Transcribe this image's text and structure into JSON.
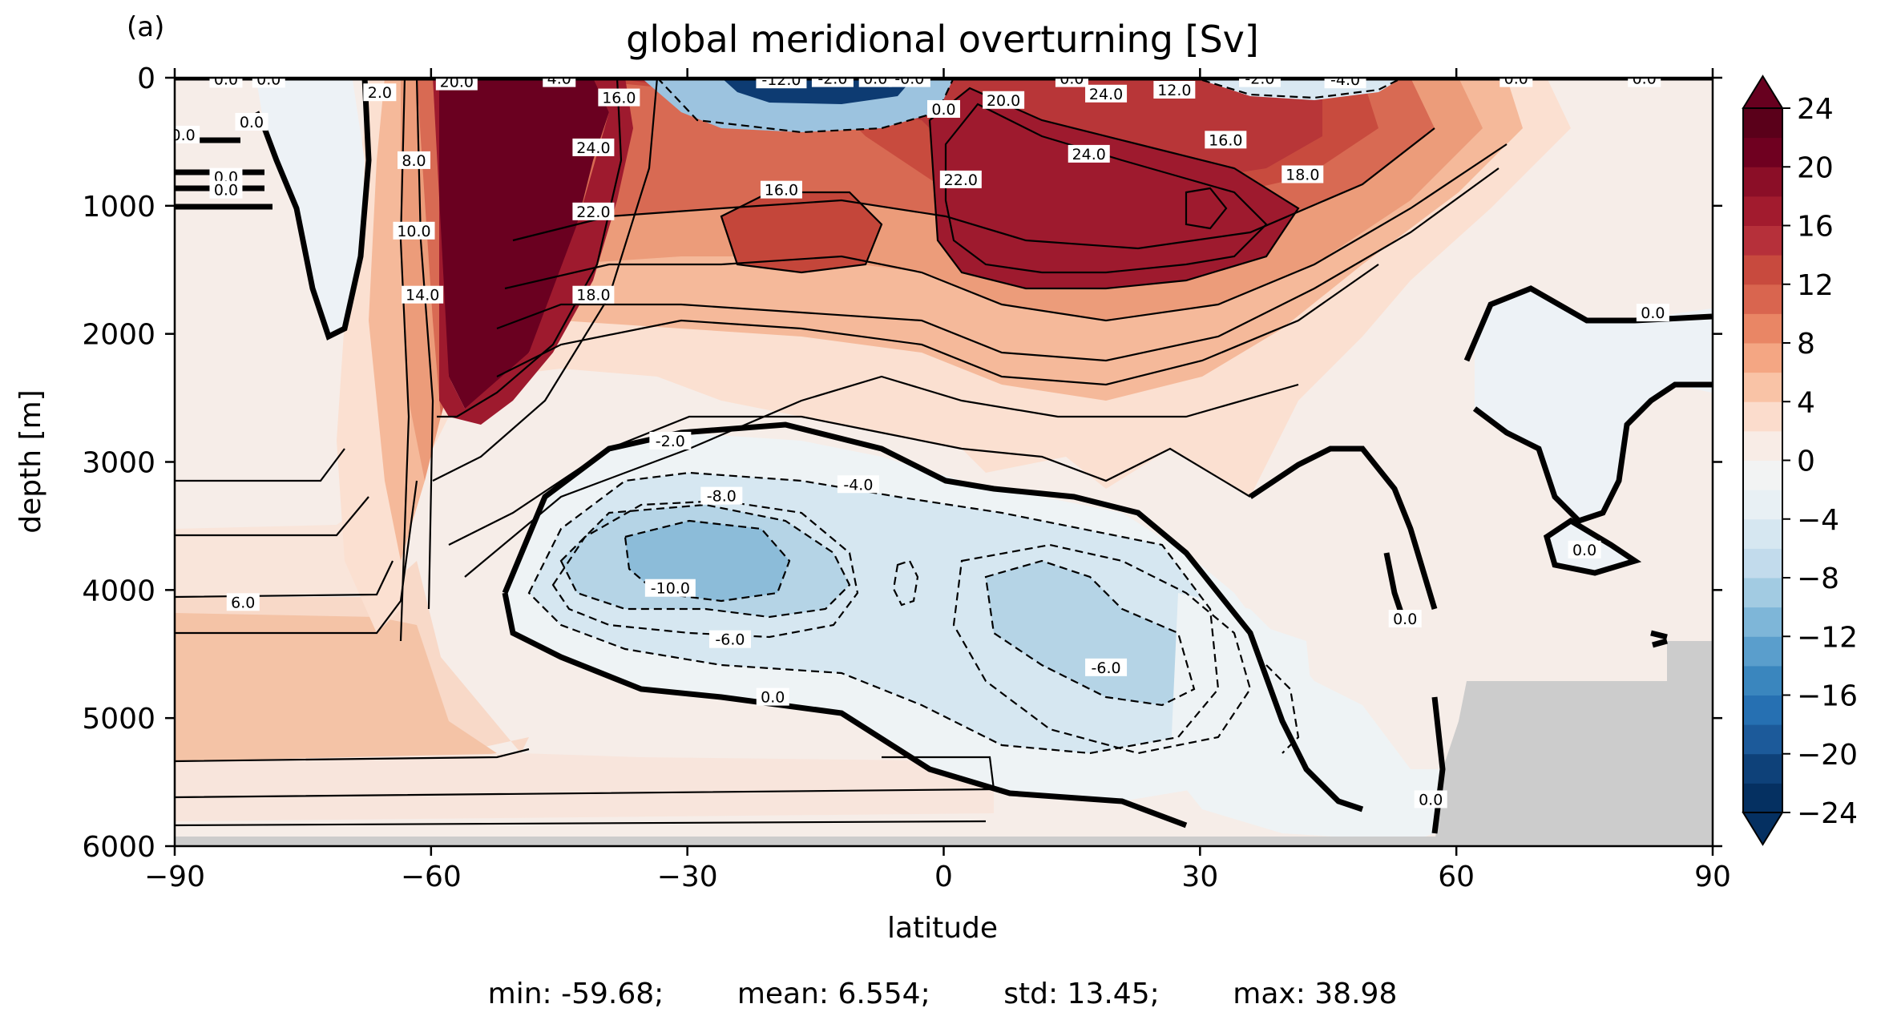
{
  "panel_label": "(a)",
  "stats_line": "min: -59.68;        mean: 6.554;        std: 13.45;        max: 38.98",
  "chart_data": {
    "type": "heatmap",
    "title": "global meridional overturning [Sv]",
    "xlabel": "latitude",
    "ylabel": "depth [m]",
    "xlim": [
      -90,
      90
    ],
    "ylim": [
      0,
      6000
    ],
    "y_inverted": true,
    "x_ticks": [
      -90,
      -60,
      -30,
      0,
      30,
      60,
      90
    ],
    "x_tick_labels": [
      "−90",
      "−60",
      "−30",
      "0",
      "30",
      "60",
      "90"
    ],
    "y_ticks": [
      0,
      1000,
      2000,
      3000,
      4000,
      5000,
      6000
    ],
    "y_tick_labels": [
      "0",
      "1000",
      "2000",
      "3000",
      "4000",
      "5000",
      "6000"
    ],
    "colorbar": {
      "colormap": "RdBu_r",
      "vmin": -24,
      "vmax": 24,
      "step": 2,
      "extend": "both",
      "tick_values": [
        24,
        20,
        16,
        12,
        8,
        4,
        0,
        -4,
        -8,
        -12,
        -16,
        -20,
        -24
      ],
      "tick_labels": [
        "24",
        "20",
        "16",
        "12",
        "8",
        "4",
        "0",
        "−4",
        "−8",
        "−12",
        "−16",
        "−20",
        "−24"
      ]
    },
    "contour_levels_solid": [
      0,
      2,
      4,
      6,
      8,
      10,
      12,
      14,
      16,
      18,
      20,
      22,
      24
    ],
    "contour_levels_dashed": [
      -2,
      -4,
      -6,
      -8,
      -10,
      -12
    ],
    "annotations": [
      {
        "text": "0.0",
        "x": -84,
        "y": 15
      },
      {
        "text": "0.0",
        "x": -79,
        "y": 15
      },
      {
        "text": "0.0",
        "x": -89,
        "y": 450
      },
      {
        "text": "0.0",
        "x": -84,
        "y": 780
      },
      {
        "text": "0.0",
        "x": -84,
        "y": 880
      },
      {
        "text": "0.0",
        "x": -81,
        "y": 350
      },
      {
        "text": "2.0",
        "x": -66,
        "y": 120
      },
      {
        "text": "8.0",
        "x": -62,
        "y": 650
      },
      {
        "text": "10.0",
        "x": -62,
        "y": 1200
      },
      {
        "text": "14.0",
        "x": -61,
        "y": 1700
      },
      {
        "text": "20.0",
        "x": -57,
        "y": 35
      },
      {
        "text": "4.0",
        "x": -45,
        "y": 10
      },
      {
        "text": "24.0",
        "x": -41,
        "y": 550
      },
      {
        "text": "22.0",
        "x": -41,
        "y": 1050
      },
      {
        "text": "18.0",
        "x": -41,
        "y": 1700
      },
      {
        "text": "16.0",
        "x": -38,
        "y": 160
      },
      {
        "text": "16.0",
        "x": -19,
        "y": 880
      },
      {
        "text": "-12.0",
        "x": -19,
        "y": 20
      },
      {
        "text": "-2.0",
        "x": -13,
        "y": 10
      },
      {
        "text": "0.0",
        "x": -8,
        "y": 10
      },
      {
        "text": "-0.0",
        "x": -4,
        "y": 10
      },
      {
        "text": "0.0",
        "x": 0,
        "y": 250
      },
      {
        "text": "20.0",
        "x": 7,
        "y": 180
      },
      {
        "text": "22.0",
        "x": 2,
        "y": 800
      },
      {
        "text": "0.0",
        "x": 15,
        "y": 10
      },
      {
        "text": "24.0",
        "x": 19,
        "y": 130
      },
      {
        "text": "24.0",
        "x": 17,
        "y": 600
      },
      {
        "text": "12.0",
        "x": 27,
        "y": 100
      },
      {
        "text": "16.0",
        "x": 33,
        "y": 490
      },
      {
        "text": "18.0",
        "x": 42,
        "y": 760
      },
      {
        "text": "-2.0",
        "x": 37,
        "y": 10
      },
      {
        "text": "-4.0",
        "x": 47,
        "y": 20
      },
      {
        "text": "0.0",
        "x": 67,
        "y": 10
      },
      {
        "text": "0.0",
        "x": 82,
        "y": 10
      },
      {
        "text": "0.0",
        "x": 83,
        "y": 1840
      },
      {
        "text": "0.0",
        "x": 75,
        "y": 3690
      },
      {
        "text": "0.0",
        "x": 54,
        "y": 4230
      },
      {
        "text": "0.0",
        "x": 57,
        "y": 5640
      },
      {
        "text": "-2.0",
        "x": -32,
        "y": 2840
      },
      {
        "text": "-4.0",
        "x": -10,
        "y": 3180
      },
      {
        "text": "-8.0",
        "x": -26,
        "y": 3270
      },
      {
        "text": "-10.0",
        "x": -32,
        "y": 3990
      },
      {
        "text": "-6.0",
        "x": -25,
        "y": 4390
      },
      {
        "text": "-6.0",
        "x": 19,
        "y": 4610
      },
      {
        "text": "0.0",
        "x": -20,
        "y": 4840
      },
      {
        "text": "6.0",
        "x": -82,
        "y": 4100
      }
    ]
  }
}
